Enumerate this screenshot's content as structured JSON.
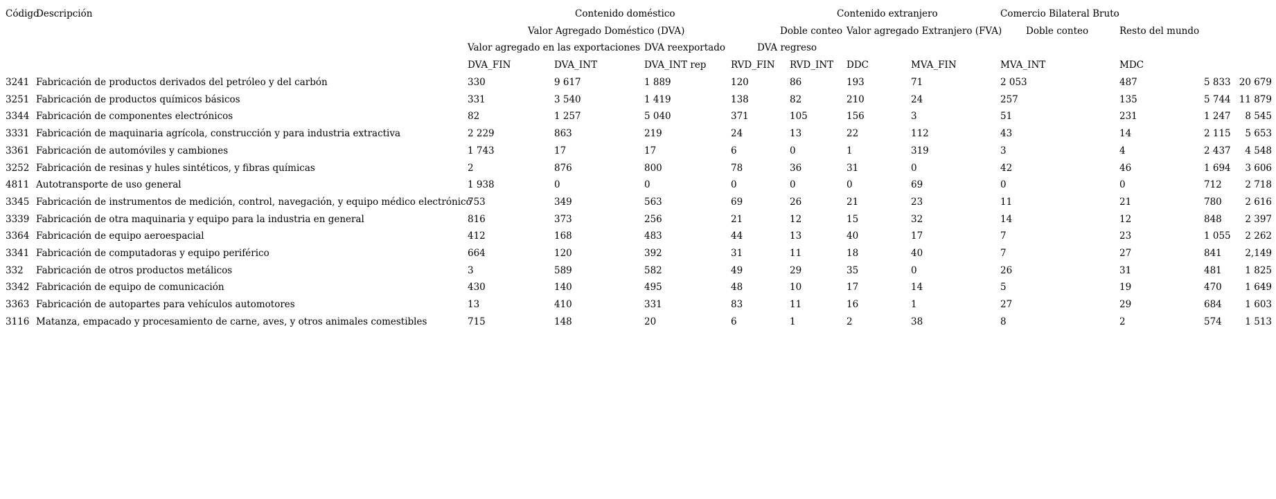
{
  "page": {
    "background": "#ffffff",
    "text_color": "#000000"
  },
  "table": {
    "col_headers": {
      "codigo": "Código",
      "descripcion": "Descripción"
    },
    "group_row1": {
      "contenido_domestico": "Contenido doméstico",
      "contenido_extranjero": "Contenido extranjero",
      "comercio_bilateral_bruto": "Comercio Bilateral Bruto"
    },
    "group_row2": {
      "valor_agregado_domestico": "Valor Agregado Doméstico (DVA)",
      "doble_conteo_domestico": "Doble conteo",
      "valor_agregado_extranjero": "Valor agregado Extranjero (FVA)",
      "doble_conteo_bilateral": "Doble conteo",
      "resto_del_mundo": "Resto del mundo"
    },
    "group_row3": {
      "valor_agregado_exportaciones": "Valor agregado en las exportaciones",
      "dva_reexportado": "DVA reexportado",
      "dva_regreso": "DVA regreso"
    },
    "columns": [
      "DVA_FIN",
      "DVA_INT",
      "DVA_INT rep",
      "RVD_FIN",
      "RVD_INT",
      "DDC",
      "MVA_FIN",
      "MVA_INT",
      "MDC"
    ],
    "rows": [
      {
        "code": "3241",
        "desc": "Fabricación de productos derivados del petróleo y del carbón",
        "values": [
          "330",
          "9 617",
          "1 889",
          "120",
          "86",
          "193",
          "71",
          "2 053",
          "487",
          "5 833",
          "20 679"
        ]
      },
      {
        "code": "3251",
        "desc": "Fabricación de productos químicos básicos",
        "values": [
          "331",
          "3 540",
          "1 419",
          "138",
          "82",
          "210",
          "24",
          "257",
          "135",
          "5 744",
          "11 879"
        ]
      },
      {
        "code": "3344",
        "desc": "Fabricación de componentes electrónicos",
        "values": [
          "82",
          "1 257",
          "5 040",
          "371",
          "105",
          "156",
          "3",
          "51",
          "231",
          "1 247",
          "8 545"
        ]
      },
      {
        "code": "3331",
        "desc": "Fabricación de maquinaria agrícola, construcción y para industria extractiva",
        "values": [
          "2 229",
          "863",
          "219",
          "24",
          "13",
          "22",
          "112",
          "43",
          "14",
          "2 115",
          "5 653"
        ]
      },
      {
        "code": "3361",
        "desc": "Fabricación de automóviles y cambiones",
        "values": [
          "1 743",
          "17",
          "17",
          "6",
          "0",
          "1",
          "319",
          "3",
          "4",
          "2 437",
          "4 548"
        ]
      },
      {
        "code": "3252",
        "desc": "Fabricación de resinas y hules sintéticos, y fibras químicas",
        "values": [
          "2",
          "876",
          "800",
          "78",
          "36",
          "31",
          "0",
          "42",
          "46",
          "1 694",
          "3 606"
        ]
      },
      {
        "code": "4811",
        "desc": "Autotransporte de uso general",
        "values": [
          "1 938",
          "0",
          "0",
          "0",
          "0",
          "0",
          "69",
          "0",
          "0",
          "712",
          "2 718"
        ]
      },
      {
        "code": "3345",
        "desc": "Fabricación de instrumentos de medición, control, navegación, y equipo médico electrónico",
        "values": [
          "753",
          "349",
          "563",
          "69",
          "26",
          "21",
          "23",
          "11",
          "21",
          "780",
          "2 616"
        ]
      },
      {
        "code": "3339",
        "desc": "Fabricación de otra maquinaria y equipo para la industria en general",
        "values": [
          "816",
          "373",
          "256",
          "21",
          "12",
          "15",
          "32",
          "14",
          "12",
          "848",
          "2 397"
        ]
      },
      {
        "code": "3364",
        "desc": "Fabricación de equipo aeroespacial",
        "values": [
          "412",
          "168",
          "483",
          "44",
          "13",
          "40",
          "17",
          "7",
          "23",
          "1 055",
          "2 262"
        ]
      },
      {
        "code": "3341",
        "desc": "Fabricación de computadoras y equipo periférico",
        "values": [
          "664",
          "120",
          "392",
          "31",
          "11",
          "18",
          "40",
          "7",
          "27",
          "841",
          "2,149"
        ]
      },
      {
        "code": "332",
        "desc": "Fabricación de otros productos metálicos",
        "values": [
          "3",
          "589",
          "582",
          "49",
          "29",
          "35",
          "0",
          "26",
          "31",
          "481",
          "1 825"
        ]
      },
      {
        "code": "3342",
        "desc": "Fabricación de equipo de comunicación",
        "values": [
          "430",
          "140",
          "495",
          "48",
          "10",
          "17",
          "14",
          "5",
          "19",
          "470",
          "1 649"
        ]
      },
      {
        "code": "3363",
        "desc": "Fabricación de autopartes para vehículos automotores",
        "values": [
          "13",
          "410",
          "331",
          "83",
          "11",
          "16",
          "1",
          "27",
          "29",
          "684",
          "1 603"
        ]
      },
      {
        "code": "3116",
        "desc": "Matanza, empacado y procesamiento de carne, aves, y otros animales comestibles",
        "values": [
          "715",
          "148",
          "20",
          "6",
          "1",
          "2",
          "38",
          "8",
          "2",
          "574",
          "1 513"
        ]
      }
    ]
  }
}
